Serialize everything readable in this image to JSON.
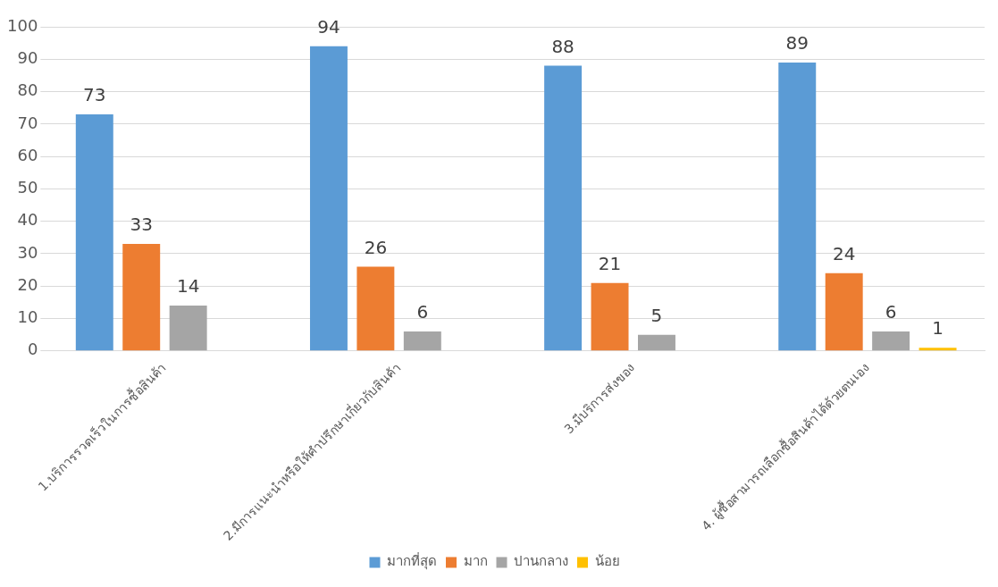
{
  "chart_data": {
    "type": "bar",
    "categories": [
      "1.บริการรวดเร็วในการซื้อสินค้า",
      "2.มีการแนะนำหรือให้คำปรึกษาเกี่ยวกับสินค้า",
      "3.มีบริการส่งของ",
      "4. ผู้ซื้อสามารถเลือกซื้อสินค้าได้ด้วยตนเอง"
    ],
    "series": [
      {
        "name": "มากที่สุด",
        "color": "#5b9bd5",
        "values": [
          73,
          94,
          88,
          89
        ]
      },
      {
        "name": "มาก",
        "color": "#ed7d31",
        "values": [
          33,
          26,
          21,
          24
        ]
      },
      {
        "name": "ปานกลาง",
        "color": "#a5a5a5",
        "values": [
          14,
          6,
          5,
          6
        ]
      },
      {
        "name": "น้อย",
        "color": "#ffc000",
        "values": [
          null,
          null,
          null,
          1
        ]
      }
    ],
    "ylim": [
      0,
      100
    ],
    "yticks": [
      0,
      10,
      20,
      30,
      40,
      50,
      60,
      70,
      80,
      90,
      100
    ],
    "grid": "y",
    "legend": "bottom",
    "data_labels": true
  }
}
